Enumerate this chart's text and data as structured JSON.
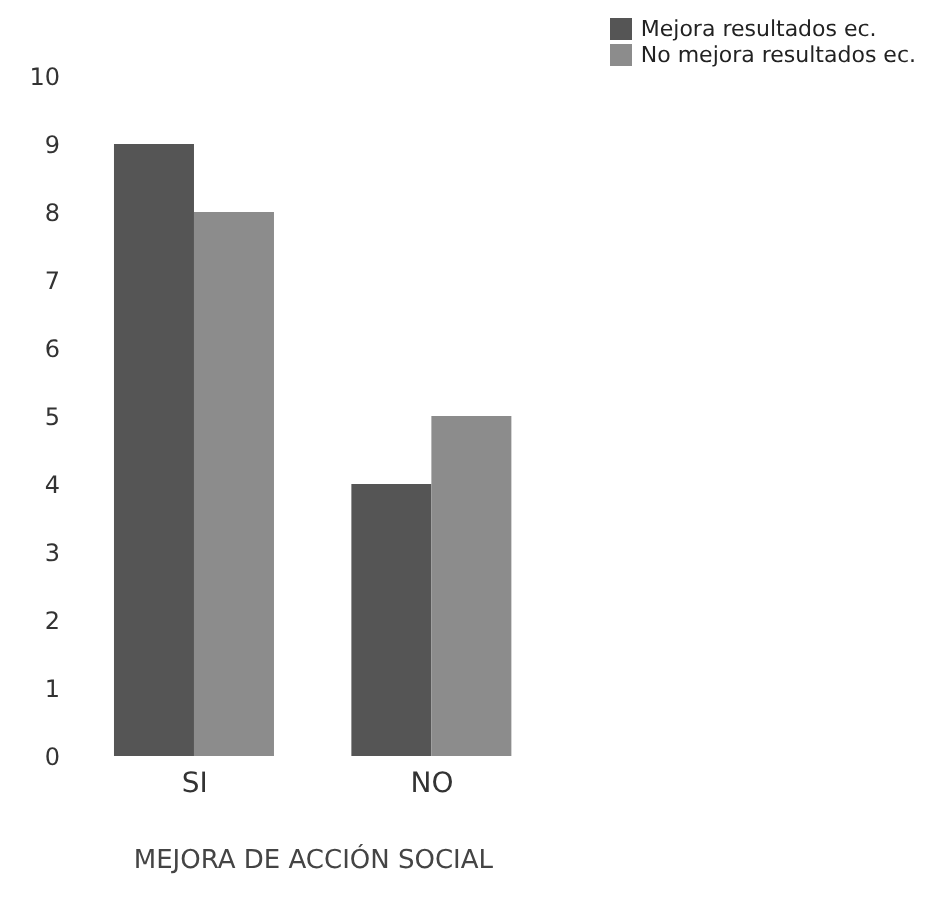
{
  "chart_data": {
    "type": "bar",
    "xlabel": "MEJORA DE ACCIÓN SOCIAL",
    "categories": [
      "SI",
      "NO"
    ],
    "series": [
      {
        "name": "Mejora resultados ec.",
        "color": "#555555",
        "values": [
          9,
          4
        ]
      },
      {
        "name": "No mejora resultados ec.",
        "color": "#8c8c8c",
        "values": [
          8,
          5
        ]
      }
    ],
    "ylim": [
      0,
      10
    ],
    "yticks": [
      0,
      1,
      2,
      3,
      4,
      5,
      6,
      7,
      8,
      9,
      10
    ],
    "legend": "top right"
  }
}
